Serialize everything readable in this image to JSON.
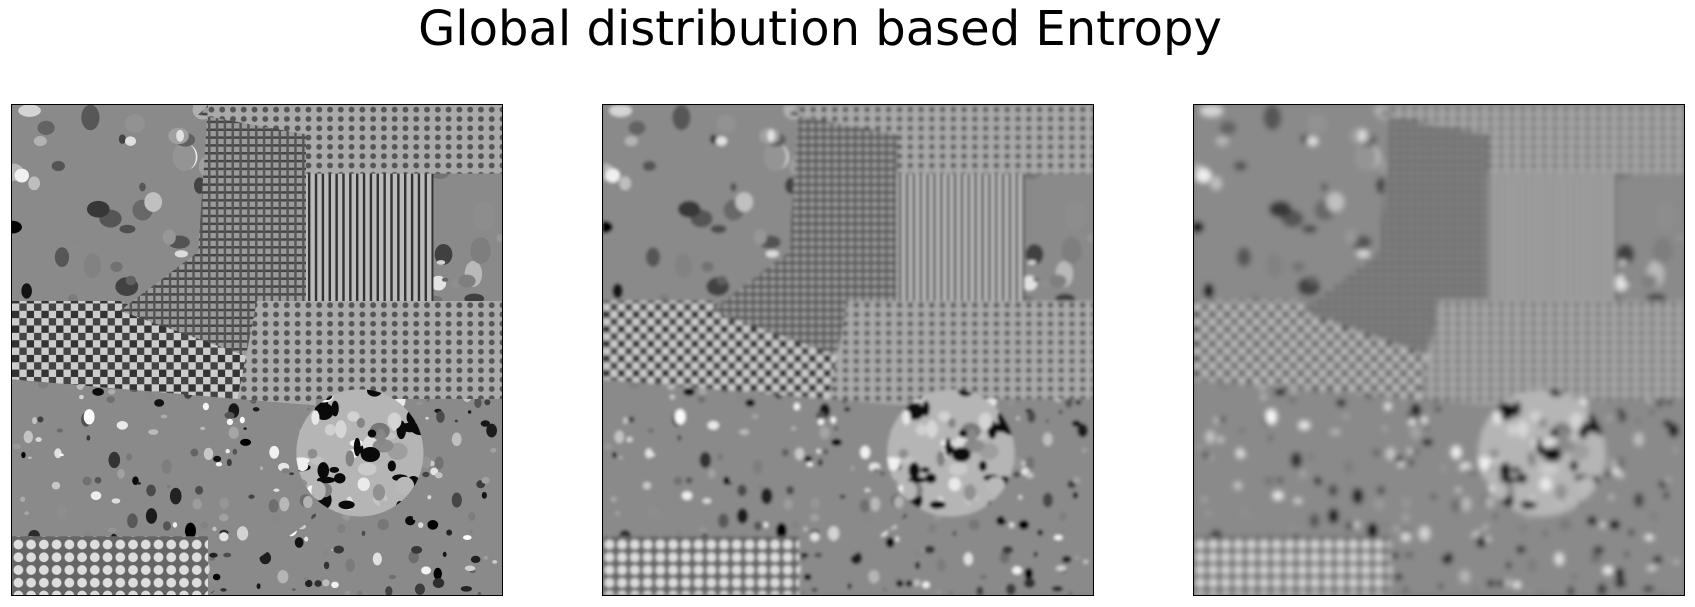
{
  "figure": {
    "title": "Global distribution based Entropy"
  },
  "panels": [
    {
      "index": 1,
      "blur": 0
    },
    {
      "index": 2,
      "blur": 1.2
    },
    {
      "index": 3,
      "blur": 2.4
    }
  ],
  "colors": {
    "background": "#ffffff",
    "frame": "#000000",
    "image_palette": "grayscale"
  }
}
